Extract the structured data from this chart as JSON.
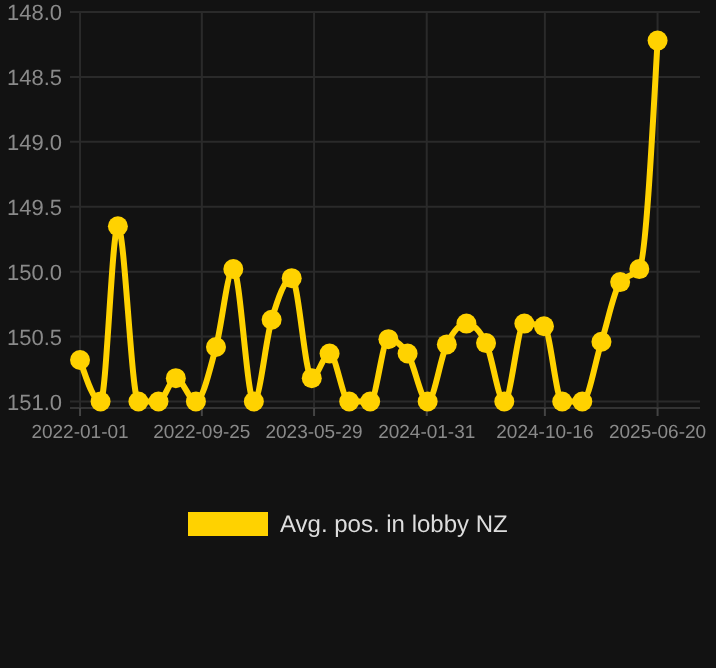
{
  "chart_data": {
    "type": "line",
    "x": [
      "2022-01-01",
      "2022-02-15",
      "2022-03-25",
      "2022-05-09",
      "2022-06-22",
      "2022-07-30",
      "2022-09-12",
      "2022-10-26",
      "2022-12-03",
      "2023-01-17",
      "2023-02-25",
      "2023-04-10",
      "2023-05-24",
      "2023-07-02",
      "2023-08-14",
      "2023-09-29",
      "2023-11-08",
      "2023-12-20",
      "2024-02-02",
      "2024-03-15",
      "2024-04-27",
      "2024-06-09",
      "2024-07-19",
      "2024-09-01",
      "2024-10-14",
      "2024-11-23",
      "2025-01-06",
      "2025-02-17",
      "2025-03-30",
      "2025-05-11",
      "2025-06-20"
    ],
    "series": [
      {
        "name": "Avg. pos. in lobby NZ",
        "color": "#ffd200",
        "values": [
          150.68,
          151.0,
          149.65,
          151.0,
          151.0,
          150.82,
          151.0,
          150.58,
          149.98,
          151.0,
          150.37,
          150.05,
          150.82,
          150.63,
          151.0,
          151.0,
          150.52,
          150.63,
          151.0,
          150.56,
          150.4,
          150.55,
          151.0,
          150.4,
          150.42,
          151.0,
          151.0,
          150.54,
          150.08,
          149.98,
          148.22
        ]
      }
    ],
    "xlim": [
      "2021-12-10",
      "2025-09-21"
    ],
    "xticks": [
      {
        "value": "2022-01-01",
        "label": "2022-01-01"
      },
      {
        "value": "2022-09-25",
        "label": "2022-09-25"
      },
      {
        "value": "2023-05-29",
        "label": "2023-05-29"
      },
      {
        "value": "2024-01-31",
        "label": "2024-01-31"
      },
      {
        "value": "2024-10-16",
        "label": "2024-10-16"
      },
      {
        "value": "2025-06-20",
        "label": "2025-06-20"
      }
    ],
    "ylim": [
      151.05,
      148.0
    ],
    "yticks": [
      {
        "value": 148,
        "label": "148.0"
      },
      {
        "value": 148.5,
        "label": "148.5"
      },
      {
        "value": 149,
        "label": "149.0"
      },
      {
        "value": 149.5,
        "label": "149.5"
      },
      {
        "value": 150,
        "label": "150.0"
      },
      {
        "value": 150.5,
        "label": "150.5"
      },
      {
        "value": 151,
        "label": "151.0"
      }
    ],
    "grid": true,
    "legend": "bottom",
    "marker": "circle",
    "line_style": "solid"
  }
}
